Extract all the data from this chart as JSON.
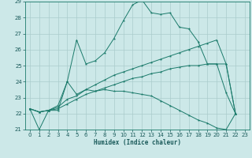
{
  "xlabel": "Humidex (Indice chaleur)",
  "bg_color": "#cce8e8",
  "grid_color": "#aacccc",
  "line_color": "#1a7a6a",
  "xlim": [
    -0.5,
    23.5
  ],
  "ylim": [
    21,
    29
  ],
  "yticks": [
    21,
    22,
    23,
    24,
    25,
    26,
    27,
    28,
    29
  ],
  "xticks": [
    0,
    1,
    2,
    3,
    4,
    5,
    6,
    7,
    8,
    9,
    10,
    11,
    12,
    13,
    14,
    15,
    16,
    17,
    18,
    19,
    20,
    21,
    22,
    23
  ],
  "series": [
    {
      "x": [
        0,
        1,
        2,
        3,
        4,
        5,
        6,
        7,
        8,
        9,
        10,
        11,
        12,
        13,
        14,
        15,
        16,
        17,
        18,
        19,
        20,
        21,
        22
      ],
      "y": [
        22.3,
        21.0,
        22.2,
        22.2,
        24.0,
        26.6,
        25.1,
        25.3,
        25.8,
        26.7,
        27.8,
        28.8,
        29.1,
        28.3,
        28.2,
        28.3,
        27.4,
        27.3,
        26.5,
        25.1,
        25.1,
        23.3,
        22.0
      ]
    },
    {
      "x": [
        0,
        1,
        2,
        3,
        4,
        5,
        6,
        7,
        8,
        9,
        10,
        11,
        12,
        13,
        14,
        15,
        16,
        17,
        18,
        19,
        20,
        21,
        22
      ],
      "y": [
        22.3,
        22.1,
        22.2,
        22.5,
        24.0,
        23.2,
        23.5,
        23.4,
        23.5,
        23.4,
        23.4,
        23.3,
        23.2,
        23.1,
        22.8,
        22.5,
        22.2,
        21.9,
        21.6,
        21.4,
        21.1,
        21.0,
        22.0
      ]
    },
    {
      "x": [
        0,
        1,
        2,
        3,
        4,
        5,
        6,
        7,
        8,
        9,
        10,
        11,
        12,
        13,
        14,
        15,
        16,
        17,
        18,
        19,
        20,
        21,
        22
      ],
      "y": [
        22.3,
        22.1,
        22.2,
        22.4,
        22.9,
        23.1,
        23.5,
        23.8,
        24.1,
        24.4,
        24.6,
        24.8,
        25.0,
        25.2,
        25.4,
        25.6,
        25.8,
        26.0,
        26.2,
        26.4,
        26.6,
        25.1,
        22.0
      ]
    },
    {
      "x": [
        0,
        1,
        2,
        3,
        4,
        5,
        6,
        7,
        8,
        9,
        10,
        11,
        12,
        13,
        14,
        15,
        16,
        17,
        18,
        19,
        20,
        21,
        22
      ],
      "y": [
        22.3,
        22.1,
        22.2,
        22.3,
        22.6,
        22.9,
        23.2,
        23.4,
        23.6,
        23.8,
        24.0,
        24.2,
        24.3,
        24.5,
        24.6,
        24.8,
        24.9,
        25.0,
        25.0,
        25.1,
        25.1,
        25.1,
        22.0
      ]
    }
  ]
}
